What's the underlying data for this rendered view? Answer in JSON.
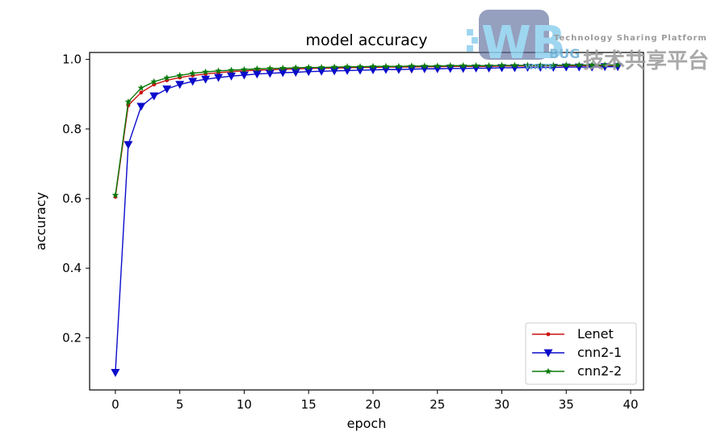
{
  "chart_data": {
    "type": "line",
    "title": "model accuracy",
    "xlabel": "epoch",
    "ylabel": "accuracy",
    "xlim": [
      -2,
      41
    ],
    "ylim": [
      0.05,
      1.02
    ],
    "xticks": [
      0,
      5,
      10,
      15,
      20,
      25,
      30,
      35,
      40
    ],
    "yticks": [
      0.2,
      0.4,
      0.6,
      0.8,
      1.0
    ],
    "ytick_labels": [
      "0.2",
      "0.4",
      "0.6",
      "0.8",
      "1.0"
    ],
    "grid": false,
    "legend_position": "lower-right",
    "x": [
      0,
      1,
      2,
      3,
      4,
      5,
      6,
      7,
      8,
      9,
      10,
      11,
      12,
      13,
      14,
      15,
      16,
      17,
      18,
      19,
      20,
      21,
      22,
      23,
      24,
      25,
      26,
      27,
      28,
      29,
      30,
      31,
      32,
      33,
      34,
      35,
      36,
      37,
      38,
      39
    ],
    "series": [
      {
        "name": "Lenet",
        "color": "#cc1111",
        "marker": "dot",
        "values": [
          0.605,
          0.868,
          0.905,
          0.928,
          0.94,
          0.948,
          0.954,
          0.958,
          0.962,
          0.965,
          0.967,
          0.969,
          0.97,
          0.972,
          0.973,
          0.974,
          0.975,
          0.975,
          0.976,
          0.977,
          0.977,
          0.978,
          0.978,
          0.978,
          0.979,
          0.979,
          0.98,
          0.98,
          0.98,
          0.98,
          0.981,
          0.981,
          0.981,
          0.981,
          0.982,
          0.982,
          0.982,
          0.982,
          0.982,
          0.983
        ]
      },
      {
        "name": "cnn2-1",
        "color": "#0b0bcc",
        "marker": "triangle-down",
        "values": [
          0.1,
          0.755,
          0.865,
          0.895,
          0.915,
          0.928,
          0.937,
          0.943,
          0.948,
          0.952,
          0.955,
          0.958,
          0.96,
          0.962,
          0.963,
          0.965,
          0.966,
          0.967,
          0.968,
          0.969,
          0.97,
          0.971,
          0.971,
          0.972,
          0.973,
          0.973,
          0.974,
          0.974,
          0.975,
          0.975,
          0.976,
          0.976,
          0.977,
          0.977,
          0.977,
          0.978,
          0.978,
          0.978,
          0.979,
          0.979
        ]
      },
      {
        "name": "cnn2-2",
        "color": "#0a7a0a",
        "marker": "star",
        "values": [
          0.61,
          0.878,
          0.918,
          0.936,
          0.947,
          0.954,
          0.96,
          0.964,
          0.967,
          0.969,
          0.971,
          0.973,
          0.974,
          0.975,
          0.976,
          0.977,
          0.977,
          0.978,
          0.979,
          0.979,
          0.98,
          0.98,
          0.98,
          0.981,
          0.981,
          0.981,
          0.982,
          0.982,
          0.982,
          0.982,
          0.983,
          0.983,
          0.983,
          0.983,
          0.983,
          0.984,
          0.984,
          0.984,
          0.984,
          0.984
        ]
      }
    ]
  },
  "watermark": {
    "logo_letters": "WB",
    "brand": "BUG",
    "brand_sub": "WRITE",
    "tagline": "Technology Sharing Platform",
    "cn_text": "技术共享平台"
  }
}
